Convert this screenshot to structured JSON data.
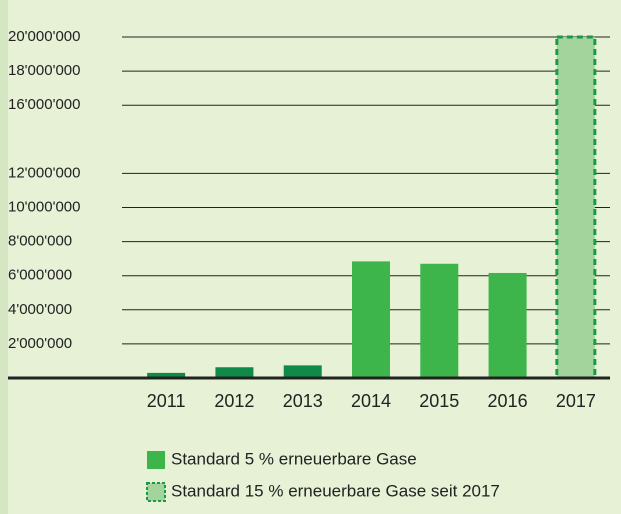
{
  "chart_data": {
    "type": "bar",
    "categories": [
      "2011",
      "2012",
      "2013",
      "2014",
      "2015",
      "2016",
      "2017"
    ],
    "values": [
      300000,
      630000,
      740000,
      6840000,
      6700000,
      6160000,
      20000000
    ],
    "colors": [
      "#0f8a48",
      "#0f8a48",
      "#0f8a48",
      "#3db54a",
      "#3db54a",
      "#3db54a",
      "#a3d49b"
    ],
    "dashed": [
      false,
      false,
      false,
      false,
      false,
      false,
      true
    ],
    "ylim": [
      0,
      20000000
    ],
    "yticks": [
      {
        "value": 2000000,
        "label": "2'000'000"
      },
      {
        "value": 4000000,
        "label": "4'000'000"
      },
      {
        "value": 6000000,
        "label": "6'000'000"
      },
      {
        "value": 8000000,
        "label": "8'000'000"
      },
      {
        "value": 10000000,
        "label": "10'000'000"
      },
      {
        "value": 12000000,
        "label": "12'000'000"
      },
      {
        "value": 16000000,
        "label": "16'000'000"
      },
      {
        "value": 18000000,
        "label": "18'000'000"
      },
      {
        "value": 20000000,
        "label": "20'000'000"
      }
    ],
    "grid": true,
    "legend": [
      {
        "name": "Standard 5 % erneuerbare Gase",
        "color": "#3db54a",
        "dashed": false
      },
      {
        "name": "Standard 15 % erneuerbare Gase seit 2017",
        "color": "#a3d49b",
        "dashed": true
      }
    ]
  }
}
